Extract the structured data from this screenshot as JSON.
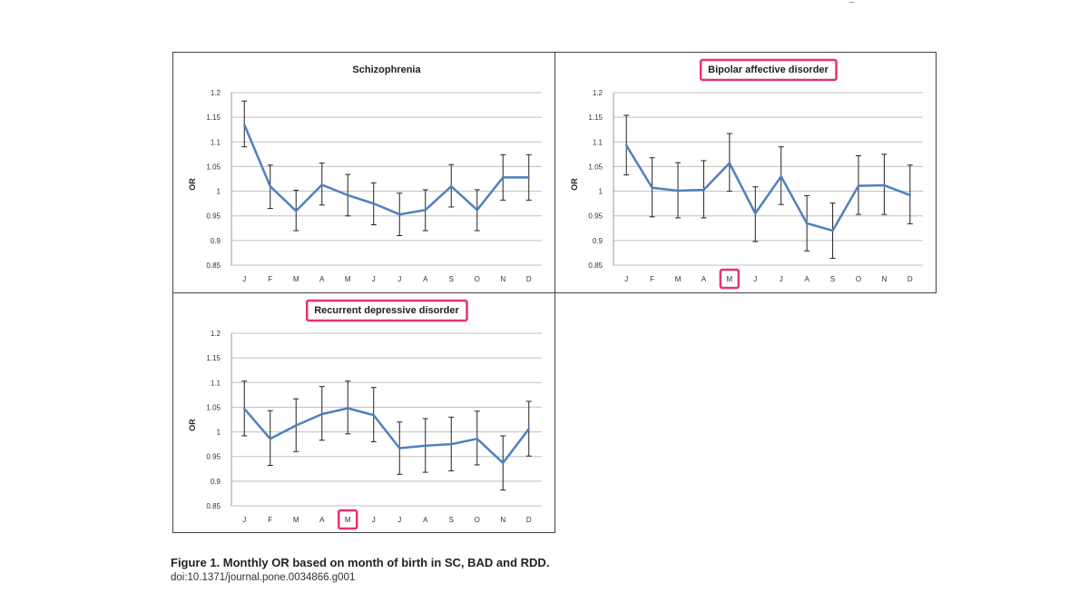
{
  "figure": {
    "caption": "Figure 1. Monthly OR based on month of birth in SC, BAD and RDD.",
    "doi": "doi:10.1371/journal.pone.0034866.g001"
  },
  "colors": {
    "line": "#4f81bd",
    "grid": "#bfbfbf",
    "highlight": "#e8336d",
    "errorbar": "#222222"
  },
  "chart_data": [
    {
      "type": "line",
      "title": "Schizophrenia",
      "title_highlighted": false,
      "ylabel": "OR",
      "xlabel": "",
      "categories": [
        "J",
        "F",
        "M",
        "A",
        "M",
        "J",
        "J",
        "A",
        "S",
        "O",
        "N",
        "D"
      ],
      "highlight_category_index": null,
      "ylim": [
        0.85,
        1.2
      ],
      "yticks": [
        "1.2",
        "1.15",
        "1.1",
        "1.05",
        "1",
        "0.95",
        "0.9",
        "0.85"
      ],
      "grid": true,
      "values": [
        1.135,
        1.01,
        0.96,
        1.013,
        0.992,
        0.975,
        0.953,
        0.962,
        1.01,
        0.962,
        1.028,
        1.028
      ],
      "err_low": [
        1.09,
        0.965,
        0.92,
        0.972,
        0.95,
        0.932,
        0.91,
        0.92,
        0.968,
        0.92,
        0.982,
        0.982
      ],
      "err_high": [
        1.183,
        1.053,
        1.002,
        1.057,
        1.034,
        1.017,
        0.996,
        1.003,
        1.054,
        1.003,
        1.074,
        1.074
      ]
    },
    {
      "type": "line",
      "title": "Bipolar affective disorder",
      "title_highlighted": true,
      "ylabel": "OR",
      "xlabel": "",
      "categories": [
        "J",
        "F",
        "M",
        "A",
        "M",
        "J",
        "J",
        "A",
        "S",
        "O",
        "N",
        "D"
      ],
      "highlight_category_index": 4,
      "ylim": [
        0.85,
        1.2
      ],
      "yticks": [
        "1.2",
        "1.15",
        "1.1",
        "1.05",
        "1",
        "0.95",
        "0.9",
        "0.85"
      ],
      "grid": true,
      "values": [
        1.093,
        1.007,
        1.001,
        1.003,
        1.057,
        0.955,
        1.03,
        0.935,
        0.92,
        1.011,
        1.012,
        0.992
      ],
      "err_low": [
        1.033,
        0.948,
        0.946,
        0.946,
        1.0,
        0.898,
        0.973,
        0.879,
        0.864,
        0.953,
        0.953,
        0.934
      ],
      "err_high": [
        1.154,
        1.068,
        1.058,
        1.062,
        1.117,
        1.009,
        1.09,
        0.991,
        0.976,
        1.072,
        1.075,
        1.053
      ]
    },
    {
      "type": "line",
      "title": "Recurrent depressive disorder",
      "title_highlighted": true,
      "ylabel": "OR",
      "xlabel": "",
      "categories": [
        "J",
        "F",
        "M",
        "A",
        "M",
        "J",
        "J",
        "A",
        "S",
        "O",
        "N",
        "D"
      ],
      "highlight_category_index": 4,
      "ylim": [
        0.85,
        1.2
      ],
      "yticks": [
        "1.2",
        "1.15",
        "1.1",
        "1.05",
        "1",
        "0.95",
        "0.9",
        "0.85"
      ],
      "grid": true,
      "values": [
        1.047,
        0.986,
        1.013,
        1.036,
        1.048,
        1.034,
        0.967,
        0.972,
        0.975,
        0.986,
        0.937,
        1.006
      ],
      "err_low": [
        0.992,
        0.932,
        0.96,
        0.983,
        0.996,
        0.98,
        0.914,
        0.918,
        0.921,
        0.933,
        0.882,
        0.951
      ],
      "err_high": [
        1.103,
        1.043,
        1.067,
        1.092,
        1.103,
        1.09,
        1.02,
        1.027,
        1.03,
        1.042,
        0.992,
        1.062
      ]
    }
  ]
}
